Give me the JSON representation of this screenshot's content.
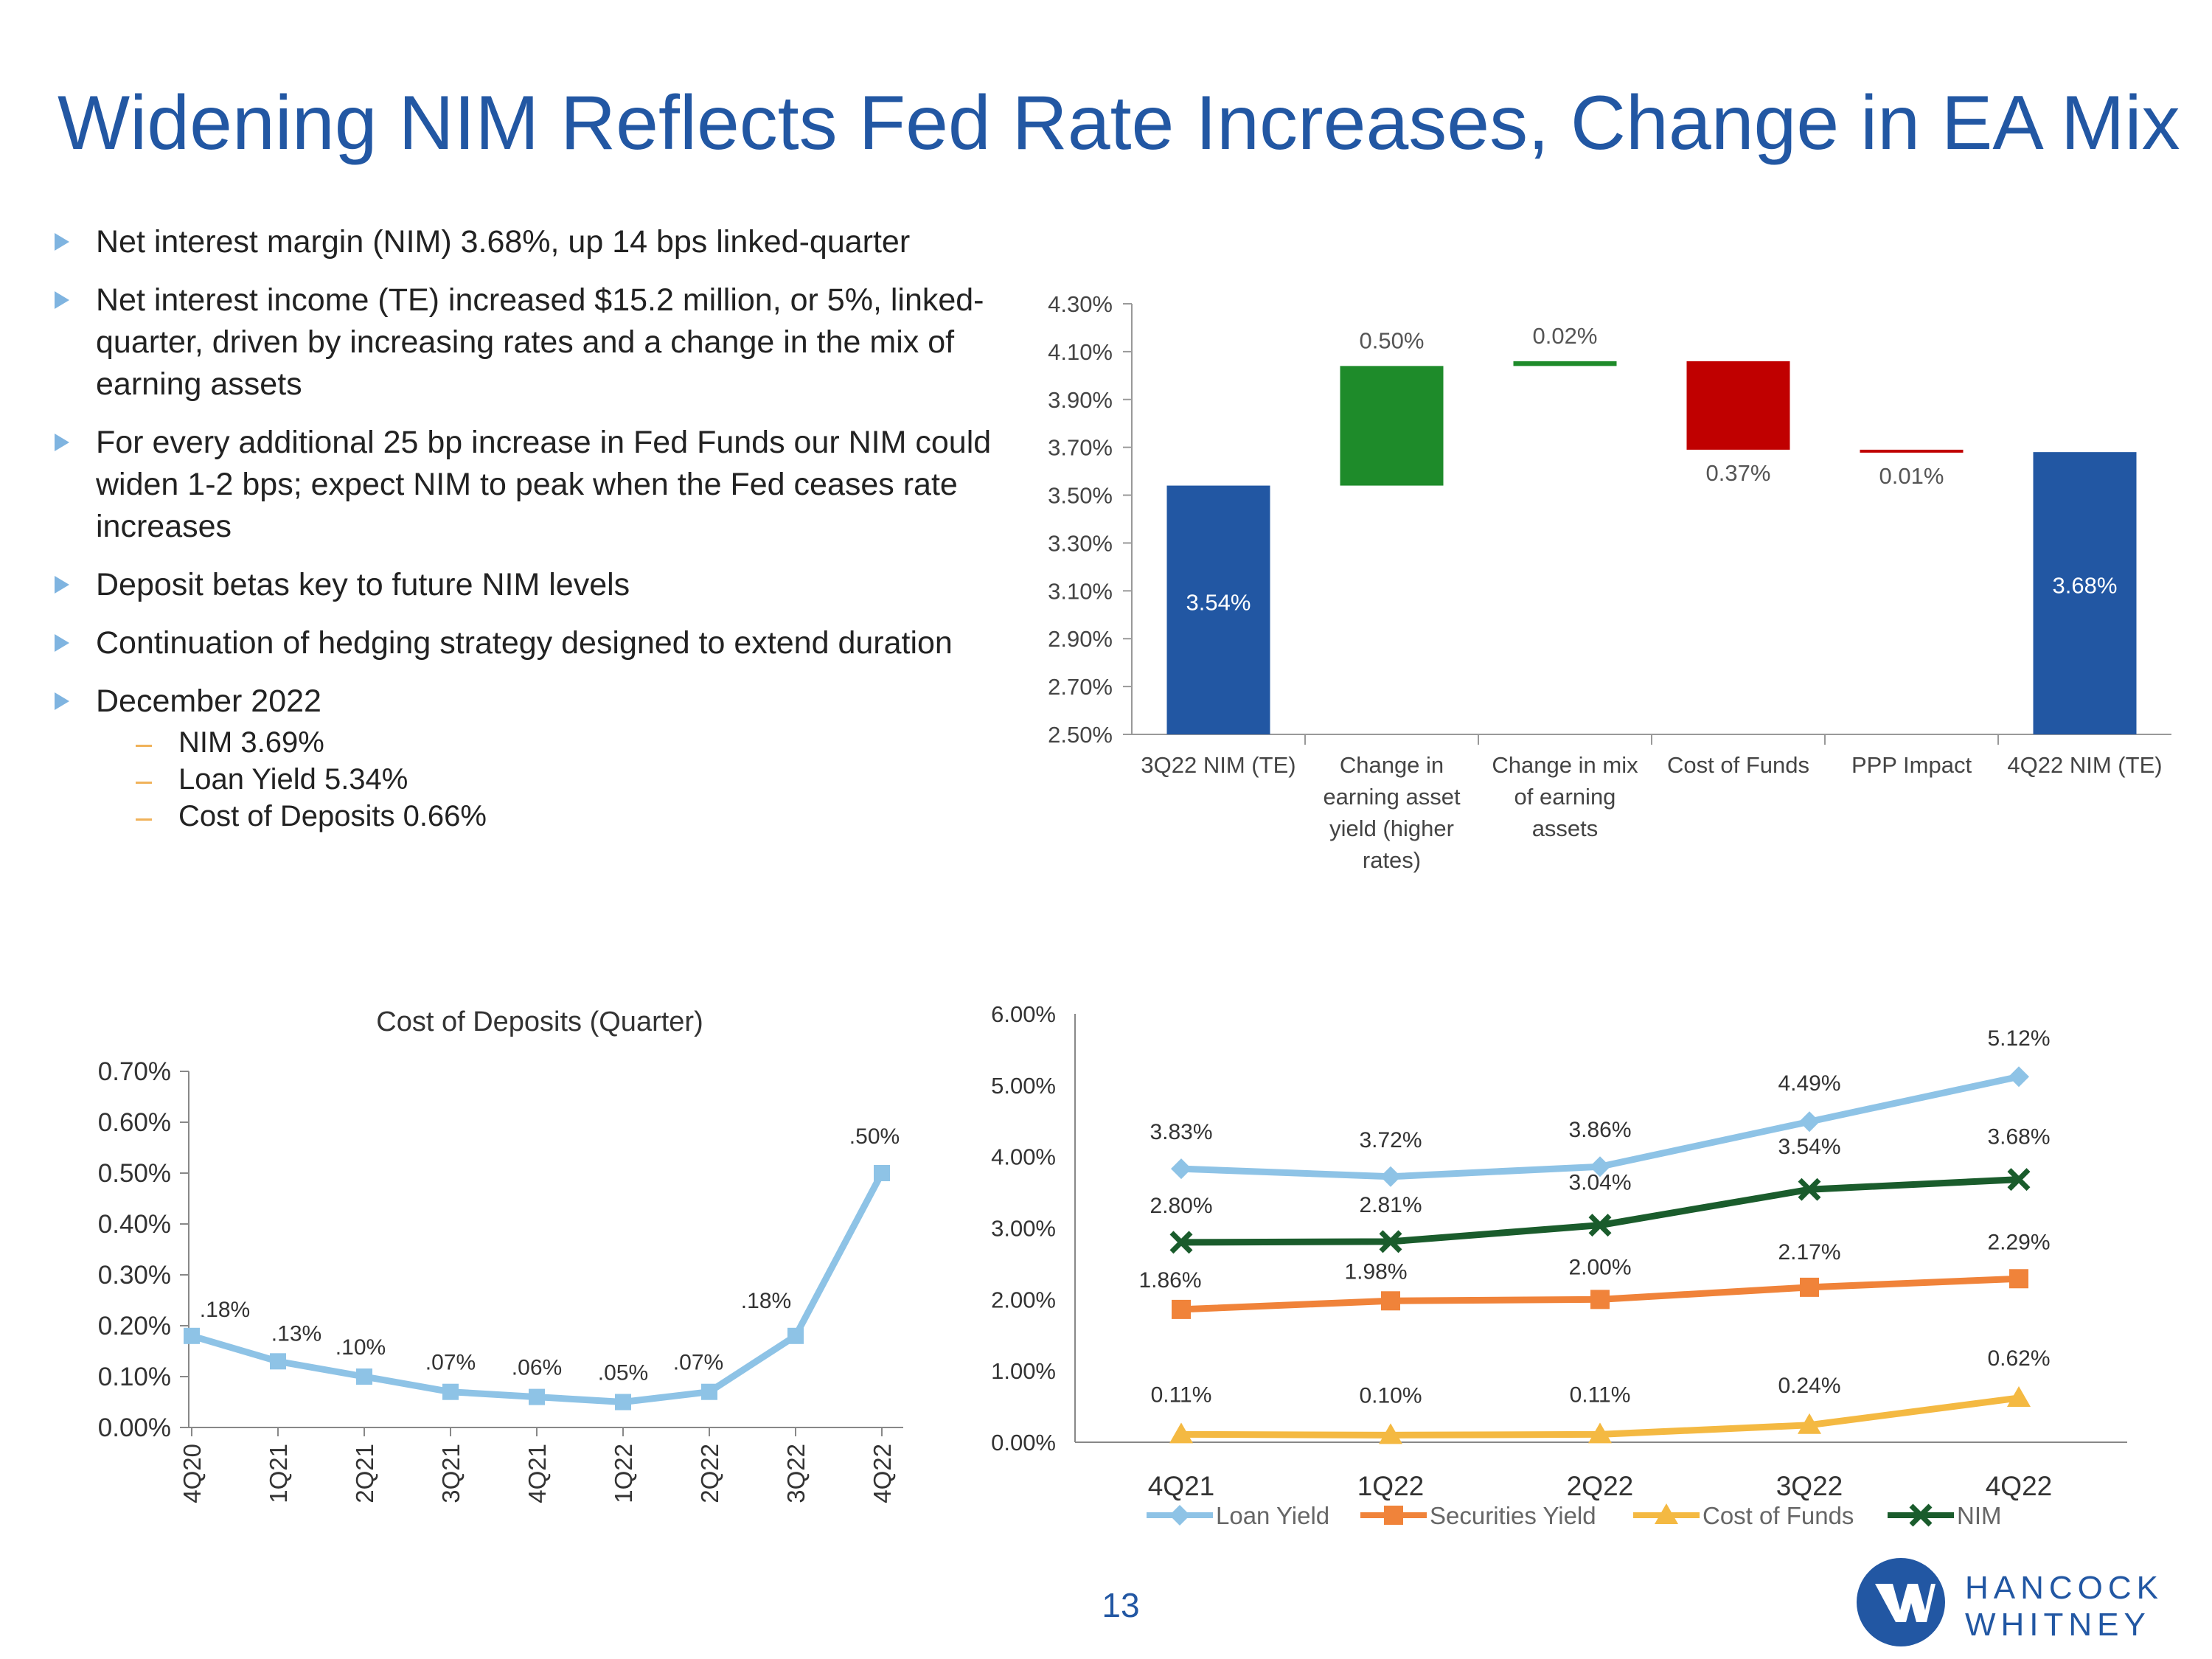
{
  "title": "Widening NIM Reflects Fed Rate Increases, Change in EA Mix",
  "bullets": [
    "Net interest margin (NIM) 3.68%, up 14 bps linked-quarter",
    "Net interest income (TE) increased $15.2 million, or 5%, linked-quarter, driven by increasing rates and a change in the mix of earning assets",
    "For every additional 25 bp increase in Fed Funds our NIM could widen 1-2 bps; expect NIM to peak when the Fed ceases rate increases",
    "Deposit betas key to future NIM levels",
    "Continuation of hedging strategy designed to extend duration",
    "December 2022"
  ],
  "sub_bullets": [
    "NIM 3.69%",
    "Loan Yield 5.34%",
    "Cost of Deposits 0.66%"
  ],
  "page_number": "13",
  "logo": {
    "line1": "HANCOCK",
    "line2": "WHITNEY"
  },
  "colors": {
    "title": "#2257a3",
    "blue_bar": "#2257a3",
    "green": "#1e8b2a",
    "red": "#c00000",
    "light_blue": "#8ec3e6",
    "orange": "#f0833a",
    "yellow": "#f4b942",
    "dark_green": "#1a5c2c"
  },
  "chart_data": [
    {
      "type": "bar",
      "subtype": "waterfall",
      "title": "",
      "categories": [
        [
          "3Q22 NIM (TE)"
        ],
        [
          "Change in",
          "earning asset",
          "yield (higher",
          "rates)"
        ],
        [
          "Change in mix",
          "of earning",
          "assets"
        ],
        [
          "Cost of Funds"
        ],
        [
          "PPP Impact"
        ],
        [
          "4Q22 NIM (TE)"
        ]
      ],
      "bars": [
        {
          "kind": "total",
          "start": 2.5,
          "end": 3.54,
          "label": "3.54%",
          "color": "#2257a3"
        },
        {
          "kind": "increase",
          "start": 3.54,
          "end": 4.04,
          "label": "0.50%",
          "color": "#1e8b2a"
        },
        {
          "kind": "increase",
          "start": 4.04,
          "end": 4.06,
          "label": "0.02%",
          "color": "#1e8b2a"
        },
        {
          "kind": "decrease",
          "start": 4.06,
          "end": 3.69,
          "label": "0.37%",
          "color": "#c00000"
        },
        {
          "kind": "decrease",
          "start": 3.69,
          "end": 3.68,
          "label": "0.01%",
          "color": "#c00000"
        },
        {
          "kind": "total",
          "start": 2.5,
          "end": 3.68,
          "label": "3.68%",
          "color": "#2257a3"
        }
      ],
      "yticks": [
        "4.30%",
        "4.10%",
        "3.90%",
        "3.70%",
        "3.50%",
        "3.30%",
        "3.10%",
        "2.90%",
        "2.70%",
        "2.50%"
      ],
      "ylim": [
        2.5,
        4.3
      ]
    },
    {
      "type": "line",
      "title": "Cost of Deposits (Quarter)",
      "categories": [
        "4Q20",
        "1Q21",
        "2Q21",
        "3Q21",
        "4Q21",
        "1Q22",
        "2Q22",
        "3Q22",
        "4Q22"
      ],
      "values": [
        0.18,
        0.13,
        0.1,
        0.07,
        0.06,
        0.05,
        0.07,
        0.18,
        0.5
      ],
      "labels": [
        ".18%",
        ".13%",
        ".10%",
        ".07%",
        ".06%",
        ".05%",
        ".07%",
        ".18%",
        ".50%"
      ],
      "yticks": [
        "0.70%",
        "0.60%",
        "0.50%",
        "0.40%",
        "0.30%",
        "0.20%",
        "0.10%",
        "0.00%"
      ],
      "ylim": [
        0,
        0.7
      ],
      "color": "#8ec3e6"
    },
    {
      "type": "line",
      "title": "",
      "categories": [
        "4Q21",
        "1Q22",
        "2Q22",
        "3Q22",
        "4Q22"
      ],
      "series": [
        {
          "name": "Loan Yield",
          "values": [
            3.83,
            3.72,
            3.86,
            4.49,
            5.12
          ],
          "labels": [
            "3.83%",
            "3.72%",
            "3.86%",
            "4.49%",
            "5.12%"
          ],
          "color": "#8ec3e6",
          "marker": "diamond"
        },
        {
          "name": "Securities Yield",
          "values": [
            1.86,
            1.98,
            2.0,
            2.17,
            2.29
          ],
          "labels": [
            "1.86%",
            "1.98%",
            "2.00%",
            "2.17%",
            "2.29%"
          ],
          "color": "#f0833a",
          "marker": "square"
        },
        {
          "name": "Cost of Funds",
          "values": [
            0.11,
            0.1,
            0.11,
            0.24,
            0.62
          ],
          "labels": [
            "0.11%",
            "0.10%",
            "0.11%",
            "0.24%",
            "0.62%"
          ],
          "color": "#f4b942",
          "marker": "triangle"
        },
        {
          "name": "NIM",
          "values": [
            2.8,
            2.81,
            3.04,
            3.54,
            3.68
          ],
          "labels": [
            "2.80%",
            "2.81%",
            "3.04%",
            "3.54%",
            "3.68%"
          ],
          "color": "#1a5c2c",
          "marker": "x"
        }
      ],
      "yticks": [
        "6.00%",
        "5.00%",
        "4.00%",
        "3.00%",
        "2.00%",
        "1.00%",
        "0.00%"
      ],
      "ylim": [
        0,
        6.0
      ],
      "legend": "bottom"
    }
  ]
}
